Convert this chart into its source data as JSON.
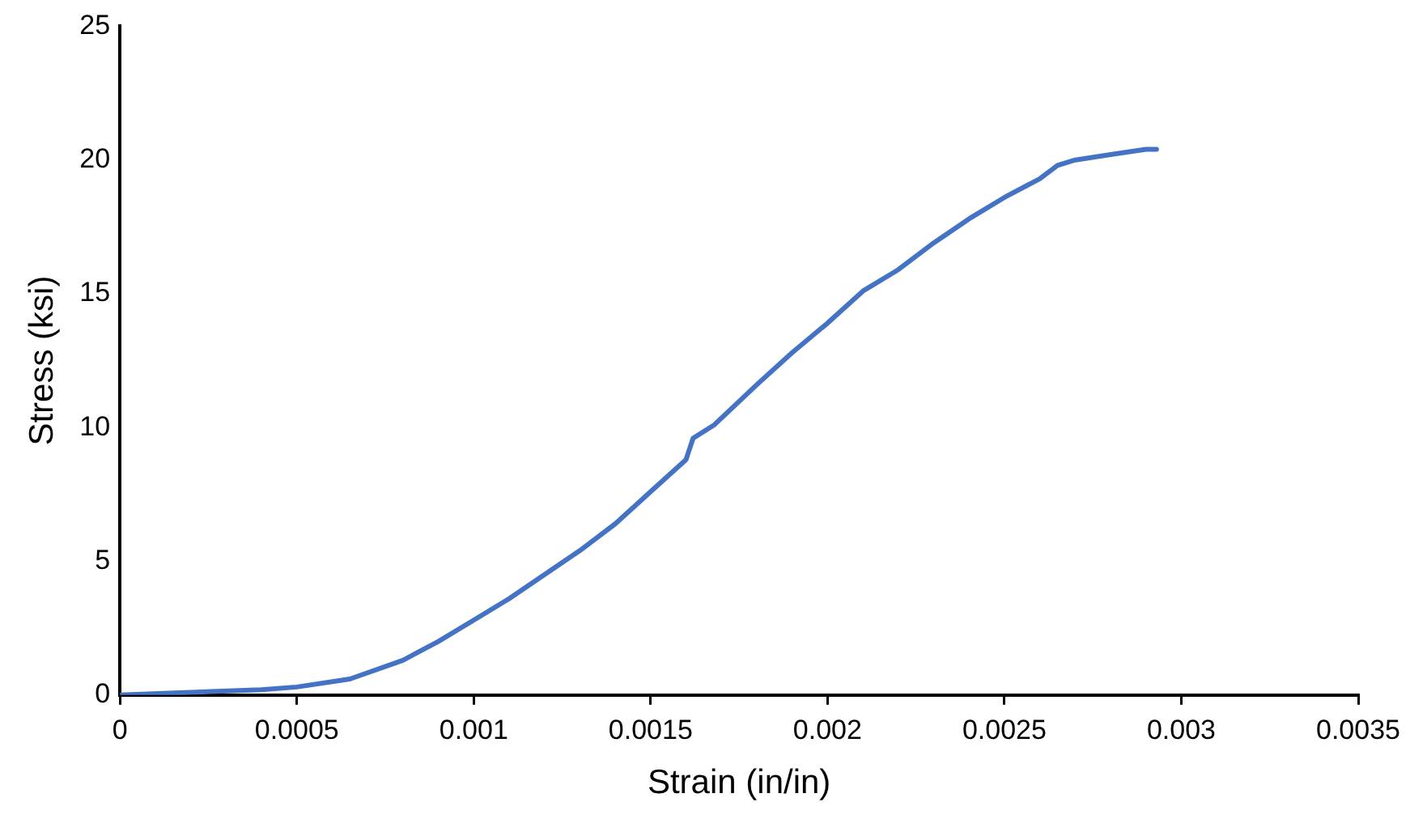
{
  "chart_data": {
    "type": "line",
    "xlabel": "Strain (in/in)",
    "ylabel": "Stress (ksi)",
    "x": [
      0,
      0.0002,
      0.0004,
      0.0005,
      0.00065,
      0.0008,
      0.0009,
      0.001,
      0.0011,
      0.0012,
      0.0013,
      0.0014,
      0.0015,
      0.0016,
      0.00162,
      0.00168,
      0.0018,
      0.0019,
      0.002,
      0.0021,
      0.0022,
      0.0023,
      0.0024,
      0.0025,
      0.0026,
      0.00265,
      0.0027,
      0.0028,
      0.0029,
      0.00293
    ],
    "series": [
      {
        "color": "#4472c4",
        "values": [
          0,
          0.1,
          0.2,
          0.3,
          0.6,
          1.3,
          2,
          2.8,
          3.6,
          4.5,
          5.4,
          6.4,
          7.6,
          8.8,
          9.6,
          10.1,
          11.6,
          12.8,
          13.9,
          15.1,
          15.9,
          16.9,
          17.8,
          18.6,
          19.3,
          19.8,
          20.0,
          20.2,
          20.4,
          20.4
        ]
      }
    ],
    "xlim": [
      0,
      0.0035
    ],
    "xticks": [
      0,
      0.0005,
      0.001,
      0.0015,
      0.002,
      0.0025,
      0.003,
      0.0035
    ],
    "ylim": [
      0,
      25
    ],
    "yticks": [
      0,
      5,
      10,
      15,
      20,
      25
    ],
    "grid": false,
    "legend": false,
    "marker": "none",
    "line_style": "solid"
  }
}
